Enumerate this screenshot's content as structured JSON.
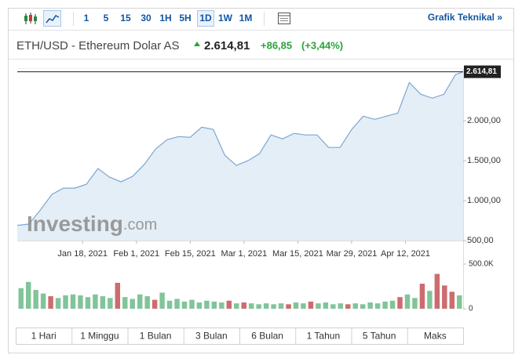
{
  "toolbar": {
    "intervals": [
      "1",
      "5",
      "15",
      "30",
      "1H",
      "5H",
      "1D",
      "1W",
      "1M"
    ],
    "active_index": 6,
    "link": "Grafik Teknikal »"
  },
  "header": {
    "symbol": "ETH/USD - Ethereum Dolar AS",
    "change": "+86,85",
    "change_pct": "(+3,44%)"
  },
  "watermark": [
    "Investing",
    ".com"
  ],
  "periods": [
    "1 Hari",
    "1 Minggu",
    "1 Bulan",
    "3 Bulan",
    "6 Bulan",
    "1 Tahun",
    "5 Tahun",
    "Maks"
  ],
  "chart_data": [
    {
      "type": "area",
      "color": "#7aa7d4",
      "fill": "#e4eef6",
      "x": [
        "2021-01-01",
        "2021-01-04",
        "2021-01-07",
        "2021-01-10",
        "2021-01-13",
        "2021-01-16",
        "2021-01-19",
        "2021-01-22",
        "2021-01-25",
        "2021-01-28",
        "2021-01-31",
        "2021-02-03",
        "2021-02-06",
        "2021-02-09",
        "2021-02-12",
        "2021-02-15",
        "2021-02-18",
        "2021-02-21",
        "2021-02-24",
        "2021-02-27",
        "2021-03-02",
        "2021-03-05",
        "2021-03-08",
        "2021-03-11",
        "2021-03-14",
        "2021-03-17",
        "2021-03-20",
        "2021-03-23",
        "2021-03-26",
        "2021-03-29",
        "2021-04-01",
        "2021-04-04",
        "2021-04-07",
        "2021-04-10",
        "2021-04-13",
        "2021-04-16",
        "2021-04-19",
        "2021-04-22",
        "2021-04-25",
        "2021-04-27"
      ],
      "values": [
        690,
        706,
        882,
        1078,
        1157,
        1157,
        1206,
        1402,
        1294,
        1235,
        1304,
        1451,
        1647,
        1764,
        1803,
        1794,
        1921,
        1892,
        1568,
        1441,
        1500,
        1588,
        1823,
        1774,
        1843,
        1823,
        1823,
        1666,
        1666,
        1892,
        2058,
        2019,
        2058,
        2097,
        2480,
        2333,
        2284,
        2333,
        2578,
        2614.81
      ],
      "xlim": [
        "2021-01-01",
        "2021-04-27"
      ],
      "xticks": [
        {
          "value": "2021-01-18",
          "label": "Jan 18, 2021"
        },
        {
          "value": "2021-02-01",
          "label": "Feb 1, 2021"
        },
        {
          "value": "2021-02-15",
          "label": "Feb 15, 2021"
        },
        {
          "value": "2021-03-01",
          "label": "Mar 1, 2021"
        },
        {
          "value": "2021-03-15",
          "label": "Mar 15, 2021"
        },
        {
          "value": "2021-03-29",
          "label": "Mar 29, 2021"
        },
        {
          "value": "2021-04-12",
          "label": "Apr 12, 2021"
        }
      ],
      "ylim": [
        500,
        2650
      ],
      "yticks": [
        {
          "value": 500,
          "label": "500,00"
        },
        {
          "value": 1000,
          "label": "1.000,00"
        },
        {
          "value": 1500,
          "label": "1.500,00"
        },
        {
          "value": 2000,
          "label": "2.000,00"
        }
      ],
      "current": {
        "value": 2614.81,
        "label": "2.614,81"
      }
    },
    {
      "type": "bar",
      "values": [
        230000,
        300000,
        210000,
        170000,
        140000,
        120000,
        150000,
        160000,
        150000,
        130000,
        160000,
        140000,
        120000,
        290000,
        130000,
        110000,
        160000,
        140000,
        100000,
        180000,
        90000,
        110000,
        80000,
        100000,
        70000,
        90000,
        80000,
        70000,
        90000,
        60000,
        70000,
        60000,
        50000,
        60000,
        50000,
        60000,
        50000,
        70000,
        60000,
        80000,
        60000,
        70000,
        50000,
        60000,
        50000,
        60000,
        50000,
        70000,
        60000,
        80000,
        90000,
        130000,
        160000,
        120000,
        280000,
        200000,
        390000,
        260000,
        190000,
        150000
      ],
      "colors": [
        "#82c49a",
        "#82c49a",
        "#82c49a",
        "#82c49a",
        "#cc6c6f",
        "#82c49a",
        "#82c49a",
        "#82c49a",
        "#82c49a",
        "#82c49a",
        "#82c49a",
        "#82c49a",
        "#82c49a",
        "#cc6c6f",
        "#82c49a",
        "#82c49a",
        "#82c49a",
        "#82c49a",
        "#cc6c6f",
        "#82c49a",
        "#82c49a",
        "#82c49a",
        "#82c49a",
        "#82c49a",
        "#82c49a",
        "#82c49a",
        "#82c49a",
        "#82c49a",
        "#cc6c6f",
        "#82c49a",
        "#cc6c6f",
        "#82c49a",
        "#82c49a",
        "#82c49a",
        "#82c49a",
        "#82c49a",
        "#cc6c6f",
        "#82c49a",
        "#82c49a",
        "#cc6c6f",
        "#82c49a",
        "#82c49a",
        "#82c49a",
        "#82c49a",
        "#cc6c6f",
        "#82c49a",
        "#82c49a",
        "#82c49a",
        "#82c49a",
        "#82c49a",
        "#82c49a",
        "#cc6c6f",
        "#82c49a",
        "#82c49a",
        "#cc6c6f",
        "#82c49a",
        "#cc6c6f",
        "#cc6c6f",
        "#cc6c6f",
        "#82c49a"
      ],
      "ylim": [
        0,
        500000
      ],
      "yticks": [
        {
          "value": 0,
          "label": "0"
        },
        {
          "value": 500000,
          "label": "500.0K"
        }
      ]
    }
  ]
}
